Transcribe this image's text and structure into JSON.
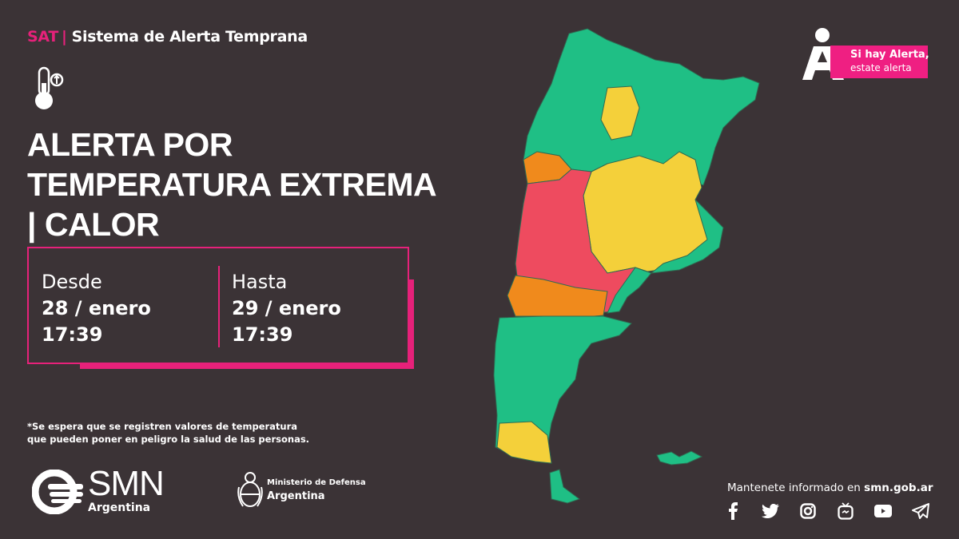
{
  "header": {
    "system_abbr": "SAT",
    "system_name": "Sistema de Alerta Temprana"
  },
  "alert": {
    "title_line1": "ALERTA POR",
    "title_line2": "TEMPERATURA EXTREMA",
    "title_line3": "| CALOR",
    "icon": "thermometer-up-icon",
    "from_label": "Desde",
    "from_date": "28 / enero",
    "from_time": "17:39",
    "to_label": "Hasta",
    "to_date": "29 / enero",
    "to_time": "17:39",
    "note_line1": "*Se espera que se registren valores de temperatura",
    "note_line2": "que pueden poner en peligro la salud de las personas."
  },
  "logos": {
    "smn": "SMN",
    "smn_sub": "Argentina",
    "ministry_line1": "Ministerio de Defensa",
    "ministry_line2": "Argentina"
  },
  "badge": {
    "line1": "Si hay Alerta,",
    "line2": "estate alerta"
  },
  "footer": {
    "follow_prefix": "Mantenete informado en ",
    "follow_site": "smn.gob.ar",
    "social": [
      "facebook-icon",
      "twitter-icon",
      "instagram-icon",
      "igtv-icon",
      "youtube-icon",
      "telegram-icon"
    ]
  },
  "map": {
    "colors": {
      "no_alert": "#1fbf85",
      "yellow": "#f4d03a",
      "orange": "#f08a1c",
      "red": "#ee4b5f",
      "background": "#3b3336",
      "accent": "#e6217a"
    }
  }
}
